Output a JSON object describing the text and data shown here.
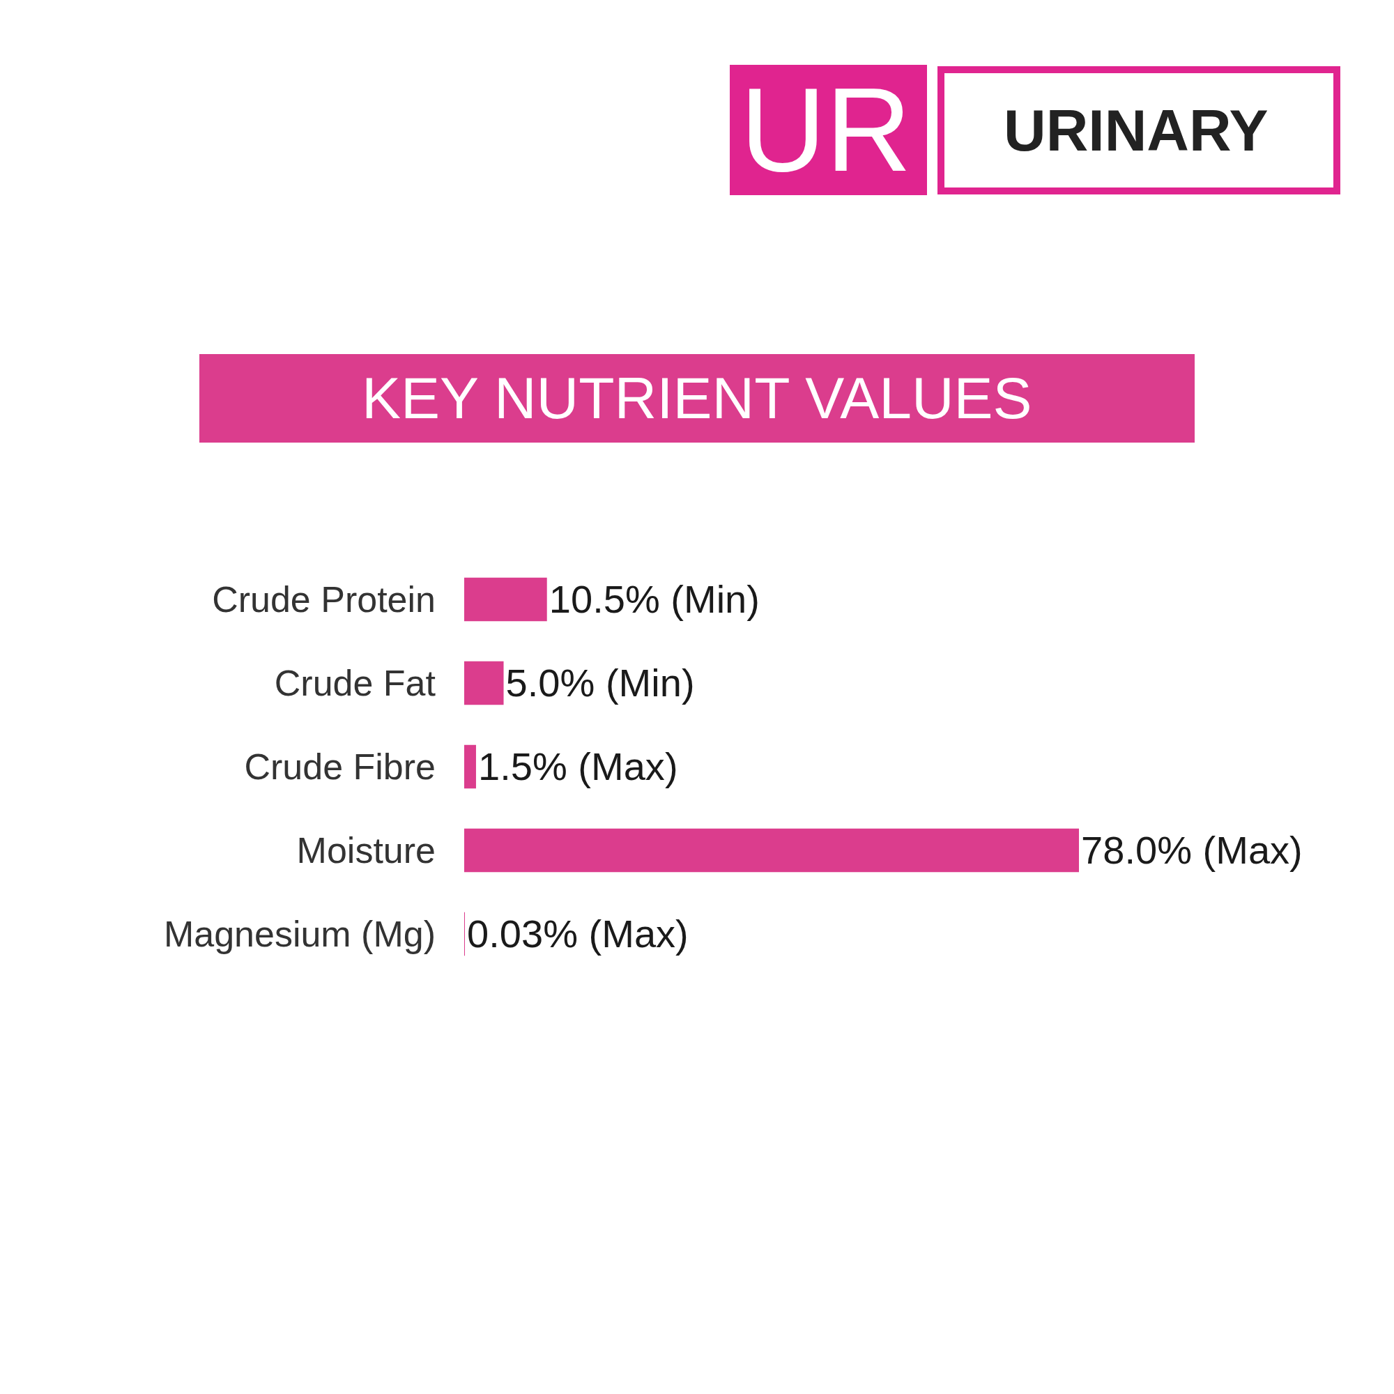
{
  "chart_data": {
    "type": "bar",
    "orientation": "horizontal",
    "title": "KEY NUTRIENT VALUES",
    "annotations": [
      "UR",
      "URINARY"
    ],
    "categories": [
      "Crude Protein",
      "Crude Fat",
      "Crude Fibre",
      "Moisture",
      "Magnesium (Mg)"
    ],
    "values": [
      10.5,
      5.0,
      1.5,
      78.0,
      0.03
    ],
    "value_labels": [
      "10.5% (Min)",
      "5.0% (Min)",
      "1.5% (Max)",
      "78.0% (Max)",
      "0.03% (Max)"
    ],
    "color": "#db3d8d",
    "tick_labels": "y"
  }
}
